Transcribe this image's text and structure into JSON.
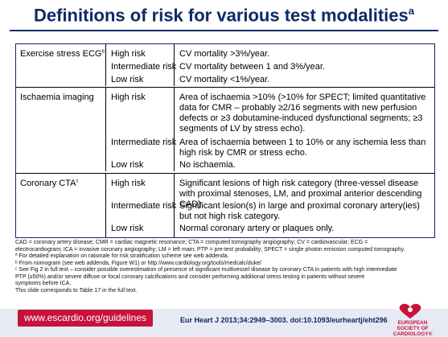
{
  "title": {
    "text": "Definitions of risk for various test modalities",
    "sup": "a"
  },
  "table": {
    "sections": [
      {
        "modality": "Exercise stress ECG",
        "sup": "b",
        "rows": [
          {
            "risk": "High risk",
            "definition": "CV mortality >3%/year."
          },
          {
            "risk": "Intermediate risk",
            "definition": "CV mortality between 1 and 3%/year."
          },
          {
            "risk": "Low risk",
            "definition": "CV mortality <1%/year."
          }
        ]
      },
      {
        "modality": "Ischaemia imaging",
        "sup": "",
        "rows": [
          {
            "risk": "High risk",
            "definition": "Area of ischaemia >10% (>10% for SPECT; limited quantitative data for CMR – probably ≥2/16 segments with new perfusion defects or ≥3 dobutamine-induced dysfunctional segments; ≥3 segments of LV by stress echo)."
          },
          {
            "risk": "Intermediate risk",
            "definition": "Area of ischaemia between 1 to 10% or any ischemia less than high risk by CMR or stress echo."
          },
          {
            "risk": "Low risk",
            "definition": "No ischaemia."
          }
        ]
      },
      {
        "modality": "Coronary CTA",
        "sup": "c",
        "rows": [
          {
            "risk": "High risk",
            "definition": "Significant lesions of high risk category (three-vessel disease with proximal stenoses, LM, and proximal anterior descending CAD)."
          },
          {
            "risk": "Intermediate risk",
            "definition": "Significant lesion(s) in large and proximal coronary artery(ies) but not high risk category."
          },
          {
            "risk": "Low risk",
            "definition": "Normal coronary artery or plaques only."
          }
        ]
      }
    ]
  },
  "footnotes": [
    "CAD = coronary artery disease; CMR = cardiac magnetic resonance; CTA = computed tomography angiography; CV = cardiovascular; ECG =",
    "electrocardiogram; ICA = invasive coronary angiography; LM = left main; PTP = pre-test probability; SPECT = single photon emission computed tomography.",
    "ª For detailed explanation on rationale for risk stratification scheme see web addenda.",
    "ᵇ From nomogram (see web addenda, Figure W1) or http://www.cardiology.org/tools/medcalc/duke/",
    "ᶜ See Fig 2 in full text – consider possible overestimation of presence of significant multivessel disease by coronary CTA in patients with high intermediate",
    "PTP (≥50%) and/or severe diffuse or focal coronary calcifications and consider performing additional stress testing in patients without severe",
    "symptoms before ICA.",
    "This slide corresponds to Table 17 in the full text."
  ],
  "footer": {
    "url": "www.escardio.org/guidelines",
    "citation": "Eur Heart J  2013;34:2949–3003. doi:10.1093/eurheartj/eht296",
    "logo_text": "EUROPEAN SOCIETY OF CARDIOLOGY®"
  }
}
